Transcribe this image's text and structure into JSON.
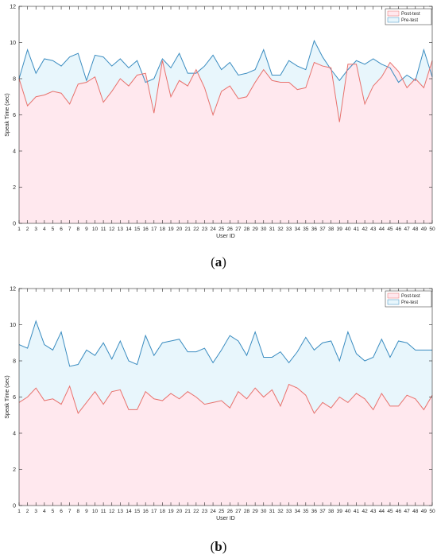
{
  "chart_data": [
    {
      "type": "area",
      "panel_label": "(a)",
      "xlabel": "User ID",
      "ylabel": "Speak Time (sec)",
      "ylim": [
        0,
        12
      ],
      "xlim": [
        1,
        50
      ],
      "yticks": [
        0,
        2,
        4,
        6,
        8,
        10,
        12
      ],
      "x": [
        1,
        2,
        3,
        4,
        5,
        6,
        7,
        8,
        9,
        10,
        11,
        12,
        13,
        14,
        15,
        16,
        17,
        18,
        19,
        20,
        21,
        22,
        23,
        24,
        25,
        26,
        27,
        28,
        29,
        30,
        31,
        32,
        33,
        34,
        35,
        36,
        37,
        38,
        39,
        40,
        41,
        42,
        43,
        44,
        45,
        46,
        47,
        48,
        49,
        50
      ],
      "legend_position": "top-right",
      "grid": false,
      "series": [
        {
          "name": "Post-test",
          "color": "#e8716c",
          "fill": "#ffe8ee",
          "values": [
            8.0,
            6.5,
            7.0,
            7.1,
            7.3,
            7.2,
            6.6,
            7.7,
            7.8,
            8.1,
            6.7,
            7.3,
            8.0,
            7.6,
            8.2,
            8.3,
            6.1,
            9.0,
            7.0,
            7.9,
            7.6,
            8.5,
            7.5,
            6.0,
            7.3,
            7.6,
            6.9,
            7.0,
            7.8,
            8.5,
            7.9,
            7.8,
            7.8,
            7.4,
            7.5,
            8.9,
            8.7,
            8.6,
            5.6,
            8.8,
            8.8,
            6.6,
            7.6,
            8.1,
            8.9,
            8.4,
            7.5,
            8.0,
            7.5,
            9.0
          ]
        },
        {
          "name": "Pre-test",
          "color": "#3a8cc0",
          "fill": "#e8f6fc",
          "values": [
            8.0,
            9.6,
            8.3,
            9.1,
            9.0,
            8.7,
            9.2,
            9.4,
            7.9,
            9.3,
            9.2,
            8.7,
            9.1,
            8.6,
            9.0,
            7.8,
            8.0,
            9.1,
            8.6,
            9.4,
            8.3,
            8.3,
            8.7,
            9.3,
            8.5,
            8.9,
            8.2,
            8.3,
            8.5,
            9.6,
            8.2,
            8.2,
            9.0,
            8.7,
            8.5,
            10.1,
            9.2,
            8.5,
            7.9,
            8.5,
            9.0,
            8.8,
            9.1,
            8.8,
            8.6,
            7.8,
            8.2,
            7.9,
            9.6,
            8.1
          ]
        }
      ]
    },
    {
      "type": "area",
      "panel_label": "(b)",
      "xlabel": "User ID",
      "ylabel": "Speak Time (sec)",
      "ylim": [
        0,
        12
      ],
      "xlim": [
        1,
        50
      ],
      "yticks": [
        0,
        2,
        4,
        6,
        8,
        10,
        12
      ],
      "x": [
        1,
        2,
        3,
        4,
        5,
        6,
        7,
        8,
        9,
        10,
        11,
        12,
        13,
        14,
        15,
        16,
        17,
        18,
        19,
        20,
        21,
        22,
        23,
        24,
        25,
        26,
        27,
        28,
        29,
        30,
        31,
        32,
        33,
        34,
        35,
        36,
        37,
        38,
        39,
        40,
        41,
        42,
        43,
        44,
        45,
        46,
        47,
        48,
        49,
        50
      ],
      "legend_position": "top-right",
      "grid": false,
      "series": [
        {
          "name": "Post-test",
          "color": "#e8716c",
          "fill": "#ffe8ee",
          "values": [
            5.7,
            6.0,
            6.5,
            5.8,
            5.9,
            5.6,
            6.6,
            5.1,
            5.7,
            6.3,
            5.6,
            6.3,
            6.4,
            5.3,
            5.3,
            6.3,
            5.9,
            5.8,
            6.2,
            5.9,
            6.3,
            6.0,
            5.6,
            5.7,
            5.8,
            5.4,
            6.3,
            5.9,
            6.5,
            6.0,
            6.4,
            5.5,
            6.7,
            6.5,
            6.1,
            5.1,
            5.7,
            5.4,
            6.0,
            5.7,
            6.2,
            5.9,
            5.3,
            6.2,
            5.5,
            5.5,
            6.1,
            5.9,
            5.3,
            6.1
          ]
        },
        {
          "name": "Pre-test",
          "color": "#3a8cc0",
          "fill": "#e8f6fc",
          "values": [
            8.9,
            8.7,
            10.2,
            8.9,
            8.6,
            9.6,
            7.7,
            7.8,
            8.6,
            8.3,
            9.0,
            8.1,
            9.1,
            8.0,
            7.8,
            9.4,
            8.3,
            9.0,
            9.1,
            9.2,
            8.5,
            8.5,
            8.7,
            7.9,
            8.6,
            9.4,
            9.1,
            8.3,
            9.6,
            8.2,
            8.2,
            8.5,
            7.9,
            8.5,
            9.3,
            8.6,
            9.0,
            9.1,
            8.0,
            9.6,
            8.4,
            8.0,
            8.2,
            9.2,
            8.2,
            9.1,
            9.0,
            8.6,
            8.6,
            8.6
          ]
        }
      ]
    }
  ]
}
